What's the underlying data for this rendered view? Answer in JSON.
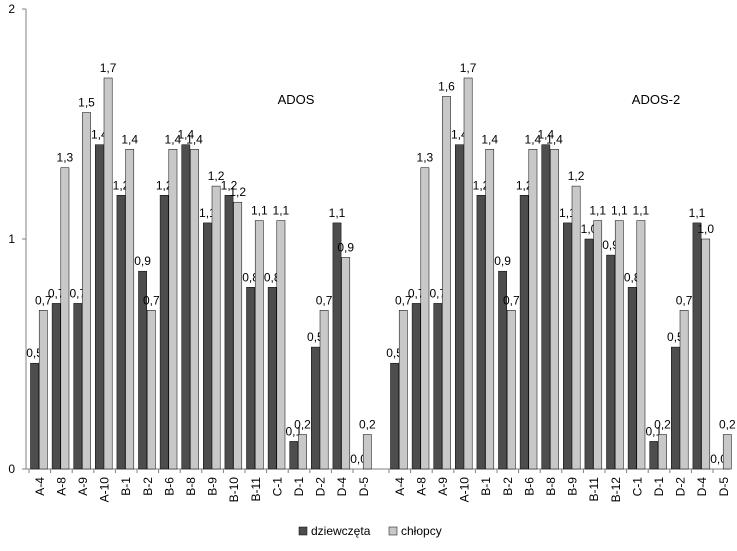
{
  "chart_data": {
    "type": "bar",
    "ylim": [
      0,
      2
    ],
    "yticks": [
      "0",
      "1",
      "2"
    ],
    "colors": {
      "dziewczeta": "#4d4d4d",
      "chlopcy": "#c8c8c8"
    },
    "legend": {
      "position": "bottom",
      "entries": [
        "dziewczęta",
        "chłopcy"
      ]
    },
    "panels": [
      {
        "title": "ADOS",
        "categories": [
          "A-4",
          "A-8",
          "A-9",
          "A-10",
          "B-1",
          "B-2",
          "B-6",
          "B-8",
          "B-9",
          "B-10",
          "B-11",
          "C-1",
          "D-1",
          "D-2",
          "D-4",
          "D-5"
        ],
        "series": [
          {
            "name": "dziewczęta",
            "values": [
              0.46,
              0.72,
              0.72,
              1.41,
              1.19,
              0.86,
              1.19,
              1.41,
              1.07,
              1.19,
              0.79,
              0.79,
              0.12,
              0.53,
              1.07,
              0.0
            ],
            "labels": [
              "0,5",
              "0,7",
              "0,7",
              "1,4",
              "1,2",
              "0,9",
              "1,2",
              "1,4",
              "1,1",
              "1,2",
              "0,8",
              "0,8",
              "0,1",
              "0,5",
              "1,1",
              "0,0"
            ]
          },
          {
            "name": "chłopcy",
            "values": [
              0.69,
              1.31,
              1.55,
              1.7,
              1.39,
              0.69,
              1.39,
              1.39,
              1.23,
              1.16,
              1.08,
              1.08,
              0.15,
              0.69,
              0.92,
              0.15
            ],
            "labels": [
              "0,7",
              "1,3",
              "1,5",
              "1,7",
              "1,4",
              "0,7",
              "1,4",
              "1,4",
              "1,2",
              "1,2",
              "1,1",
              "1,1",
              "0,2",
              "0,7",
              "0,9",
              "0,2"
            ]
          }
        ]
      },
      {
        "title": "ADOS-2",
        "categories": [
          "A-4",
          "A-8",
          "A-9",
          "A-10",
          "B-1",
          "B-2",
          "B-6",
          "B-8",
          "B-9",
          "B-11",
          "B-12",
          "C-1",
          "D-1",
          "D-2",
          "D-4",
          "D-5"
        ],
        "series": [
          {
            "name": "dziewczęta",
            "values": [
              0.46,
              0.72,
              0.72,
              1.41,
              1.19,
              0.86,
              1.19,
              1.41,
              1.07,
              1.0,
              0.93,
              0.79,
              0.12,
              0.53,
              1.07,
              0.0
            ],
            "labels": [
              "0,5",
              "0,7",
              "0,7",
              "1,4",
              "1,2",
              "0,9",
              "1,2",
              "1,4",
              "1,1",
              "1,0",
              "0,9",
              "0,8",
              "0,1",
              "0,5",
              "1,1",
              "0,0"
            ]
          },
          {
            "name": "chłopcy",
            "values": [
              0.69,
              1.31,
              1.62,
              1.7,
              1.39,
              0.69,
              1.39,
              1.39,
              1.23,
              1.08,
              1.08,
              1.08,
              0.15,
              0.69,
              1.0,
              0.15
            ],
            "labels": [
              "0,7",
              "1,3",
              "1,6",
              "1,7",
              "1,4",
              "0,7",
              "1,4",
              "1,4",
              "1,2",
              "1,1",
              "1,1",
              "1,1",
              "0,2",
              "0,7",
              "1,0",
              "0,2"
            ]
          }
        ]
      }
    ]
  }
}
